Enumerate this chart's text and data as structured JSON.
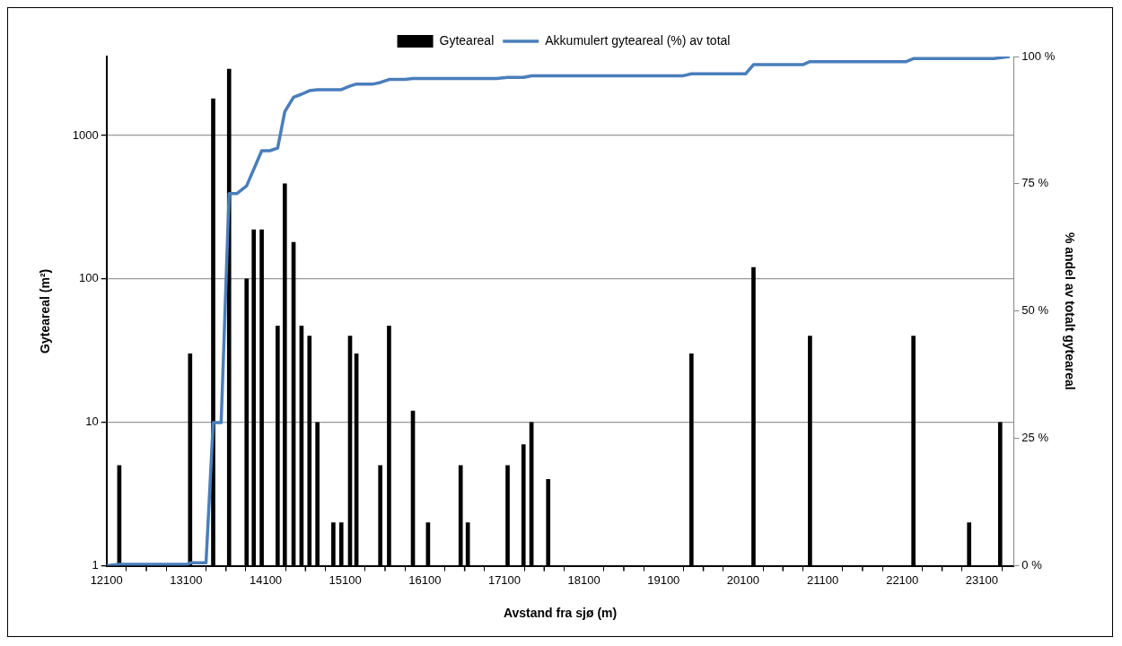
{
  "chart_data": {
    "type": "bar",
    "xlabel": "Avstand fra sjø (m)",
    "ylabel": "Gyteareal (m²)",
    "y2label": "% andel av totalt gyteareal",
    "xlim": [
      12100,
      23500
    ],
    "xticks": [
      12100,
      {
        "value": 12600,
        "label": null
      },
      13100,
      {
        "value": 13600,
        "label": null
      },
      14100,
      {
        "value": 14600,
        "label": null
      },
      15100,
      {
        "value": 15600,
        "label": null
      },
      16100,
      {
        "value": 16600,
        "label": null
      },
      17100,
      {
        "value": 17600,
        "label": null
      },
      18100,
      {
        "value": 18600,
        "label": null
      },
      19100,
      {
        "value": 19600,
        "label": null
      },
      20100,
      {
        "value": 20600,
        "label": null
      },
      21100,
      {
        "value": 21600,
        "label": null
      },
      22100,
      {
        "value": 22600,
        "label": null
      },
      23100
    ],
    "ylim": [
      1,
      3550
    ],
    "yticks": [
      1,
      10,
      100,
      1000
    ],
    "log": "y",
    "y2lim": [
      0,
      100
    ],
    "y2ticks": [
      {
        "value": 0,
        "label": "0 %"
      },
      {
        "value": 25,
        "label": "25 %"
      },
      {
        "value": 50,
        "label": "50 %"
      },
      {
        "value": 75,
        "label": "75 %"
      },
      {
        "value": 100,
        "label": "100 %"
      }
    ],
    "grid": "y",
    "legend": "top",
    "marker": "none",
    "series": [
      {
        "name": "Gyteareal",
        "color": "#000000",
        "x": [
          12260,
          13150,
          13440,
          13640,
          13860,
          13950,
          14050,
          14250,
          14340,
          14450,
          14550,
          14650,
          14750,
          14950,
          15050,
          15160,
          15240,
          15540,
          15650,
          15950,
          16140,
          16550,
          16640,
          17140,
          17340,
          17440,
          17650,
          19450,
          20230,
          20940,
          22240,
          22940,
          23330
        ],
        "values": [
          5,
          30,
          1800,
          2900,
          100,
          220,
          220,
          47,
          460,
          180,
          47,
          40,
          10,
          2,
          2,
          40,
          30,
          5,
          47,
          12,
          2,
          5,
          2,
          5,
          7,
          10,
          4,
          30,
          120,
          40,
          40,
          2,
          10
        ]
      },
      {
        "name": "Akkumulert gyteareal (%) av total",
        "type": "line",
        "axis": "y2",
        "color": "#4a7ebb",
        "line_style": "solid",
        "x": [
          12100,
          12260,
          13120,
          13150,
          13350,
          13440,
          13540,
          13640,
          13740,
          13860,
          14050,
          14150,
          14250,
          14340,
          14450,
          14550,
          14650,
          14750,
          15050,
          15160,
          15240,
          15450,
          15540,
          15650,
          15850,
          15950,
          17000,
          17140,
          17340,
          17440,
          19340,
          19450,
          20130,
          20230,
          20850,
          20940,
          22150,
          22240,
          23250,
          23450
        ],
        "values": [
          0,
          0.3,
          0.3,
          0.6,
          0.6,
          28.1,
          28.1,
          73.1,
          73.1,
          74.6,
          81.5,
          81.5,
          82.0,
          89.2,
          92.0,
          92.6,
          93.3,
          93.5,
          93.5,
          94.2,
          94.6,
          94.6,
          94.9,
          95.5,
          95.5,
          95.7,
          95.7,
          95.9,
          95.9,
          96.2,
          96.2,
          96.6,
          96.6,
          98.4,
          98.4,
          99.0,
          99.0,
          99.6,
          99.6,
          100
        ]
      }
    ]
  }
}
